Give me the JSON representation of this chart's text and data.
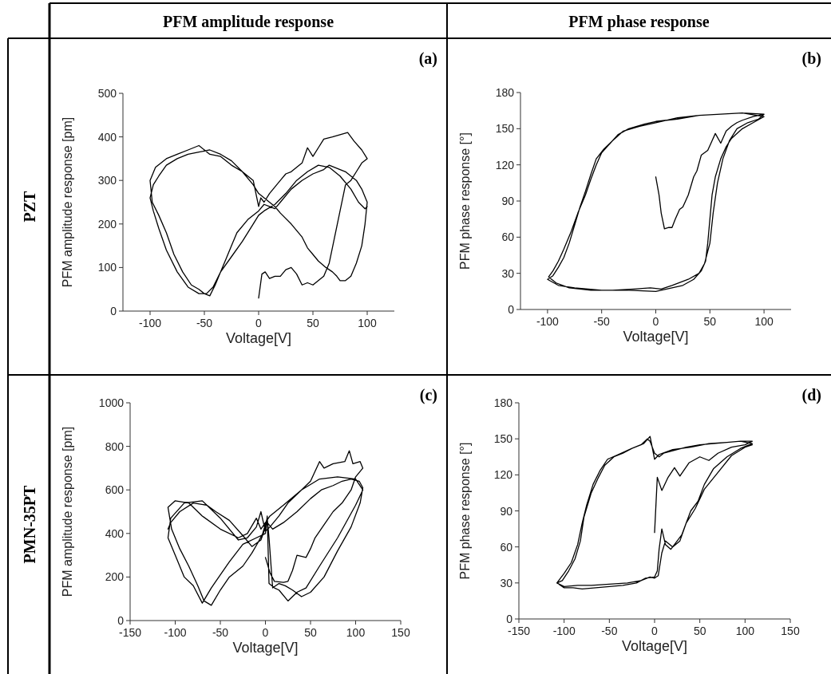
{
  "chart_data": [
    {
      "type": "line",
      "title": "PFM amplitude response",
      "xlabel": "Voltage[V]",
      "ylabel": "PFM amplitude response [pm]",
      "annotations": [
        "(a)",
        "PZT"
      ],
      "xlim": [
        -125,
        125
      ],
      "ylim": [
        0,
        500
      ],
      "xticks": [
        -100,
        -50,
        0,
        50,
        100
      ],
      "yticks": [
        0,
        100,
        200,
        300,
        400,
        500
      ],
      "grid": false,
      "marker": "none",
      "line_style": "solid",
      "series": [
        {
          "color": "#000000",
          "x": [
            0,
            3,
            6,
            10,
            15,
            20,
            25,
            30,
            35,
            40,
            45,
            50,
            55,
            60,
            65,
            70,
            75,
            80,
            85,
            90,
            95,
            100,
            95,
            88,
            82,
            75,
            68,
            60,
            55,
            50,
            45,
            40,
            35,
            30,
            25,
            20,
            15,
            10,
            5,
            2,
            0,
            -5,
            -15,
            -25,
            -35,
            -45,
            -55,
            -65,
            -75,
            -85,
            -95,
            -100,
            -98,
            -92,
            -85,
            -78,
            -70,
            -62,
            -55,
            -50,
            -45,
            -40,
            -35,
            -30,
            -25,
            -20,
            -10,
            0,
            5,
            10,
            15,
            20,
            30,
            40,
            50,
            60,
            65,
            70,
            80,
            90,
            95,
            100,
            98,
            95,
            90,
            85,
            80,
            75,
            72,
            68,
            62,
            55,
            50,
            45,
            40,
            30,
            20,
            15,
            10,
            5,
            0,
            -5,
            -15,
            -25,
            -35,
            -45,
            -55,
            -65,
            -75,
            -85,
            -92,
            -97,
            -100,
            -97,
            -92,
            -85,
            -75,
            -65,
            -55,
            -48,
            -42,
            -35,
            -25,
            -15,
            -5,
            0,
            5,
            15,
            25,
            35,
            45,
            55,
            65,
            75,
            85,
            92,
            98,
            100
          ],
          "values": [
            30,
            85,
            90,
            75,
            80,
            80,
            95,
            100,
            85,
            60,
            65,
            60,
            70,
            80,
            110,
            170,
            230,
            290,
            300,
            320,
            340,
            350,
            370,
            390,
            410,
            405,
            400,
            395,
            375,
            355,
            375,
            340,
            330,
            320,
            315,
            300,
            285,
            270,
            250,
            260,
            240,
            300,
            320,
            335,
            355,
            360,
            380,
            370,
            360,
            350,
            330,
            300,
            250,
            220,
            180,
            130,
            90,
            60,
            50,
            40,
            35,
            60,
            90,
            120,
            150,
            180,
            210,
            230,
            245,
            240,
            235,
            250,
            280,
            300,
            315,
            325,
            335,
            330,
            320,
            300,
            280,
            250,
            200,
            150,
            110,
            80,
            70,
            70,
            80,
            90,
            100,
            115,
            130,
            145,
            170,
            200,
            225,
            240,
            250,
            260,
            270,
            290,
            320,
            345,
            360,
            370,
            365,
            360,
            350,
            335,
            310,
            290,
            260,
            230,
            190,
            140,
            90,
            55,
            40,
            40,
            55,
            90,
            125,
            160,
            200,
            220,
            230,
            245,
            270,
            300,
            320,
            335,
            330,
            310,
            280,
            250,
            235,
            240
          ]
        }
      ]
    },
    {
      "type": "line",
      "title": "PFM phase response",
      "xlabel": "Voltage[V]",
      "ylabel": "PFM phase response [°]",
      "annotations": [
        "(b)"
      ],
      "xlim": [
        -125,
        125
      ],
      "ylim": [
        0,
        180
      ],
      "xticks": [
        -100,
        -50,
        0,
        50,
        100
      ],
      "yticks": [
        0,
        30,
        60,
        90,
        120,
        150,
        180
      ],
      "grid": false,
      "marker": "none",
      "line_style": "solid",
      "series": [
        {
          "color": "#000000",
          "x": [
            0,
            3,
            5,
            8,
            12,
            15,
            18,
            22,
            25,
            30,
            35,
            38,
            42,
            48,
            52,
            55,
            60,
            65,
            70,
            75,
            80,
            90,
            100,
            80,
            60,
            40,
            20,
            0,
            -15,
            -30,
            -40,
            -48,
            -55,
            -60,
            -65,
            -70,
            -75,
            -80,
            -85,
            -90,
            -95,
            -100,
            -90,
            -75,
            -50,
            -25,
            0,
            15,
            25,
            35,
            42,
            46,
            48,
            50,
            52,
            55,
            60,
            65,
            70,
            80,
            90,
            100,
            80,
            60,
            40,
            20,
            0,
            -10,
            -25,
            -35,
            -42,
            -50,
            -55,
            -60,
            -65,
            -72,
            -78,
            -85,
            -90,
            -95,
            -99,
            -92,
            -80,
            -60,
            -40,
            -20,
            -5,
            5,
            15,
            30,
            40,
            45,
            50,
            53,
            57,
            62,
            68,
            75,
            85,
            95,
            100
          ],
          "values": [
            110,
            95,
            80,
            67,
            68,
            68,
            75,
            83,
            85,
            95,
            110,
            115,
            128,
            132,
            140,
            146,
            138,
            148,
            152,
            155,
            157,
            160,
            162,
            163,
            162,
            161,
            159,
            155,
            152,
            148,
            140,
            133,
            125,
            112,
            98,
            85,
            70,
            55,
            43,
            35,
            28,
            25,
            20,
            18,
            16,
            16,
            15,
            18,
            20,
            25,
            32,
            40,
            55,
            75,
            95,
            110,
            125,
            135,
            142,
            150,
            155,
            160,
            163,
            162,
            161,
            158,
            156,
            154,
            150,
            145,
            138,
            130,
            120,
            108,
            95,
            80,
            65,
            50,
            40,
            32,
            27,
            22,
            18,
            16,
            16,
            17,
            18,
            17,
            20,
            25,
            30,
            38,
            55,
            80,
            105,
            125,
            140,
            150,
            155,
            158,
            162
          ]
        }
      ]
    },
    {
      "type": "line",
      "xlabel": "Voltage[V]",
      "ylabel": "PFM amplitude response [pm]",
      "annotations": [
        "(c)",
        "PMN-35PT"
      ],
      "xlim": [
        -150,
        150
      ],
      "ylim": [
        0,
        1000
      ],
      "xticks": [
        -150,
        -100,
        -50,
        0,
        50,
        100,
        150
      ],
      "yticks": [
        0,
        200,
        400,
        600,
        800,
        1000
      ],
      "grid": false,
      "marker": "none",
      "line_style": "solid",
      "series": [
        {
          "color": "#000000",
          "x": [
            0,
            5,
            10,
            20,
            25,
            30,
            35,
            45,
            50,
            55,
            65,
            75,
            85,
            95,
            100,
            108,
            105,
            97,
            93,
            88,
            75,
            65,
            60,
            50,
            35,
            25,
            15,
            5,
            0,
            -5,
            -10,
            -20,
            -30,
            -50,
            -70,
            -90,
            -105,
            -108,
            -100,
            -90,
            -80,
            -70,
            -60,
            -55,
            -40,
            -25,
            -10,
            0,
            2,
            4,
            10,
            15,
            25,
            35,
            45,
            60,
            80,
            100,
            108,
            100,
            80,
            60,
            40,
            20,
            5,
            -5,
            -10,
            -20,
            -30,
            -50,
            -70,
            -85,
            -100,
            -108,
            -104,
            -95,
            -85,
            -75,
            -68,
            -60,
            -50,
            -40,
            -25,
            -15,
            -8,
            -3,
            2,
            4,
            8,
            15,
            22,
            30,
            40,
            50,
            65,
            80,
            95,
            105,
            108,
            104,
            95,
            85,
            75,
            62,
            50,
            35,
            20,
            8,
            2,
            -5,
            -15,
            -25,
            -40,
            -55,
            -65,
            -80,
            -95,
            -105,
            -108
          ],
          "values": [
            290,
            220,
            180,
            175,
            180,
            230,
            300,
            290,
            330,
            380,
            440,
            500,
            540,
            600,
            660,
            700,
            730,
            720,
            780,
            730,
            720,
            700,
            730,
            640,
            580,
            540,
            480,
            430,
            410,
            500,
            430,
            380,
            370,
            470,
            550,
            540,
            470,
            380,
            300,
            200,
            160,
            80,
            150,
            180,
            270,
            350,
            380,
            400,
            480,
            170,
            150,
            140,
            90,
            130,
            150,
            250,
            380,
            530,
            600,
            650,
            660,
            650,
            600,
            530,
            480,
            420,
            470,
            400,
            380,
            420,
            480,
            540,
            550,
            520,
            420,
            330,
            250,
            160,
            90,
            70,
            140,
            200,
            250,
            310,
            360,
            400,
            470,
            380,
            150,
            170,
            160,
            140,
            110,
            130,
            200,
            320,
            430,
            540,
            610,
            640,
            650,
            640,
            620,
            600,
            560,
            500,
            450,
            420,
            450,
            370,
            340,
            390,
            460,
            500,
            530,
            540,
            500,
            450,
            420
          ]
        }
      ]
    },
    {
      "type": "line",
      "xlabel": "Voltage[V]",
      "ylabel": "PFM phase response [°]",
      "annotations": [
        "(d)"
      ],
      "xlim": [
        -150,
        150
      ],
      "ylim": [
        0,
        180
      ],
      "xticks": [
        -150,
        -100,
        -50,
        0,
        50,
        100,
        150
      ],
      "yticks": [
        0,
        30,
        60,
        90,
        120,
        150,
        180
      ],
      "grid": false,
      "marker": "none",
      "line_style": "solid",
      "series": [
        {
          "color": "#000000",
          "x": [
            0,
            3,
            8,
            15,
            22,
            28,
            38,
            50,
            60,
            70,
            85,
            100,
            108,
            95,
            80,
            65,
            50,
            35,
            20,
            10,
            5,
            0,
            -5,
            -8,
            -15,
            -25,
            -35,
            -45,
            -55,
            -62,
            -70,
            -78,
            -82,
            -88,
            -95,
            -102,
            -108,
            -100,
            -90,
            -80,
            -65,
            -50,
            -35,
            -20,
            -10,
            0,
            3,
            5,
            8,
            12,
            18,
            25,
            30,
            35,
            40,
            48,
            55,
            65,
            80,
            95,
            108,
            95,
            80,
            60,
            40,
            20,
            5,
            0,
            -5,
            -12,
            -25,
            -40,
            -52,
            -60,
            -68,
            -75,
            -80,
            -85,
            -92,
            -100,
            -108,
            -100,
            -85,
            -70,
            -50,
            -30,
            -15,
            -5,
            0,
            4,
            8,
            12,
            20,
            28,
            35,
            45,
            55,
            70,
            85,
            100,
            108
          ],
          "values": [
            72,
            118,
            107,
            118,
            126,
            119,
            130,
            135,
            132,
            138,
            143,
            145,
            148,
            148,
            147,
            146,
            145,
            143,
            140,
            138,
            135,
            138,
            148,
            150,
            145,
            142,
            138,
            135,
            128,
            118,
            105,
            85,
            65,
            50,
            40,
            32,
            30,
            26,
            26,
            25,
            26,
            27,
            28,
            30,
            34,
            35,
            40,
            58,
            75,
            62,
            58,
            65,
            70,
            80,
            90,
            98,
            112,
            125,
            135,
            142,
            146,
            148,
            147,
            146,
            143,
            141,
            137,
            133,
            152,
            146,
            142,
            137,
            133,
            124,
            112,
            95,
            80,
            62,
            47,
            38,
            30,
            27,
            28,
            28,
            29,
            30,
            32,
            35,
            34,
            36,
            55,
            65,
            60,
            65,
            80,
            92,
            108,
            122,
            136,
            143,
            145
          ]
        }
      ]
    }
  ]
}
